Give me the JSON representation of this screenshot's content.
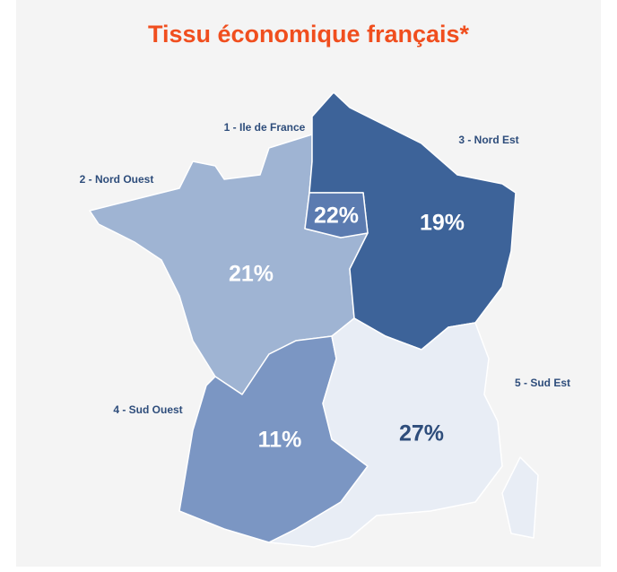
{
  "title": "Tissu économique français*",
  "regions": [
    {
      "name": "1 - Ile de France",
      "share": "22%"
    },
    {
      "name": "2 - Nord Ouest",
      "share": "21%"
    },
    {
      "name": "3 - Nord Est",
      "share": "19%"
    },
    {
      "name": "4 - Sud Ouest",
      "share": "11%"
    },
    {
      "name": "5 - Sud Est",
      "share": "27%"
    }
  ]
}
